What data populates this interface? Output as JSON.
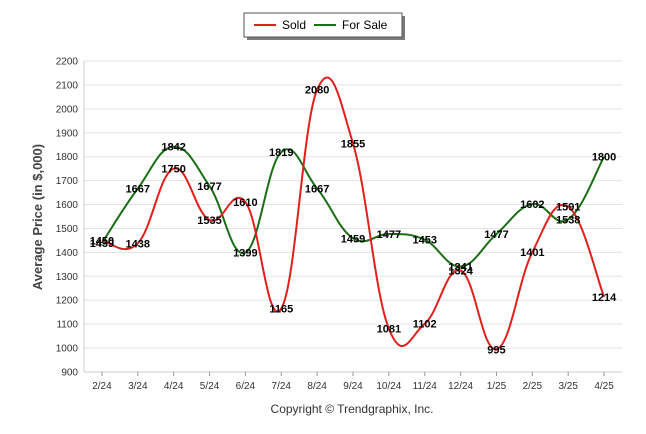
{
  "chart_data": {
    "type": "line",
    "categories": [
      "2/24",
      "3/24",
      "4/24",
      "5/24",
      "6/24",
      "7/24",
      "8/24",
      "9/24",
      "10/24",
      "11/24",
      "12/24",
      "1/25",
      "2/25",
      "3/25",
      "4/25"
    ],
    "series": [
      {
        "name": "Sold",
        "color": "#e0201c",
        "values": [
          1450,
          1438,
          1750,
          1535,
          1610,
          1165,
          2080,
          1855,
          1081,
          1102,
          1324,
          995,
          1401,
          1591,
          1214
        ]
      },
      {
        "name": "For Sale",
        "color": "#1a6e14",
        "values": [
          1439,
          1667,
          1842,
          1677,
          1399,
          1819,
          1667,
          1459,
          1477,
          1453,
          1341,
          1477,
          1602,
          1538,
          1800
        ]
      }
    ],
    "ylabel": "Average Price (in $,000)",
    "ylim": [
      900,
      2200
    ],
    "yticks": [
      900,
      1000,
      1100,
      1200,
      1300,
      1400,
      1500,
      1600,
      1700,
      1800,
      1900,
      2000,
      2100,
      2200
    ],
    "grid": true,
    "legend": "top-center"
  },
  "footer": "Copyright © Trendgraphix, Inc."
}
